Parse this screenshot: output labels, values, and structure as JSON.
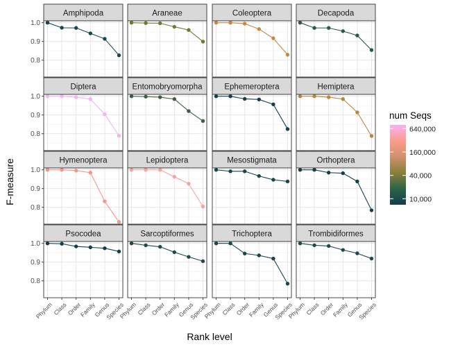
{
  "chart_data": {
    "type": "line",
    "xlabel": "Rank level",
    "ylabel": "F-measure",
    "ylim": [
      0.71,
      1.01
    ],
    "y_ticks": [
      0.8,
      0.9,
      1.0
    ],
    "y_tick_labels": [
      "0.8",
      "0.9",
      "1.0"
    ],
    "grid": true,
    "categories": [
      "Phylum",
      "Class",
      "Order",
      "Family",
      "Genus",
      "Species"
    ],
    "legend": {
      "title": "num Seqs",
      "placement": "right",
      "scale": "log",
      "range": [
        7000,
        800000
      ],
      "breaks": [
        10000,
        40000,
        160000,
        640000
      ],
      "break_labels": [
        "10,000",
        "40,000",
        "160,000",
        "640,000"
      ],
      "colors": [
        "#163d4e",
        "#2c6446",
        "#887f3a",
        "#ce906c",
        "#fa9d8d",
        "#f7b1f1"
      ]
    },
    "panels": [
      {
        "name": "Amphipoda",
        "values": [
          1.0,
          0.973,
          0.972,
          0.943,
          0.914,
          0.826
        ],
        "color": "#1a4550"
      },
      {
        "name": "Araneae",
        "values": [
          1.0,
          0.998,
          0.997,
          0.978,
          0.961,
          0.899
        ],
        "color": "#6f7a2f"
      },
      {
        "name": "Coleoptera",
        "values": [
          1.0,
          1.0,
          0.995,
          0.966,
          0.917,
          0.829
        ],
        "color": "#c58a3e"
      },
      {
        "name": "Decapoda",
        "values": [
          1.0,
          0.972,
          0.972,
          0.955,
          0.932,
          0.854
        ],
        "color": "#2c5a4a"
      },
      {
        "name": "Diptera",
        "values": [
          1.0,
          1.0,
          0.995,
          0.985,
          0.904,
          0.789
        ],
        "color": "#f5b3ef"
      },
      {
        "name": "Entomobryomorpha",
        "values": [
          1.0,
          0.998,
          0.995,
          0.985,
          0.921,
          0.868
        ],
        "color": "#3b5f43"
      },
      {
        "name": "Ephemeroptera",
        "values": [
          1.0,
          1.0,
          0.986,
          0.983,
          0.957,
          0.825
        ],
        "color": "#163d4e"
      },
      {
        "name": "Hemiptera",
        "values": [
          1.0,
          1.0,
          0.995,
          0.985,
          0.914,
          0.788
        ],
        "color": "#b8873a"
      },
      {
        "name": "Hymenoptera",
        "values": [
          1.0,
          1.0,
          0.996,
          0.985,
          0.832,
          0.722
        ],
        "color": "#f5958a"
      },
      {
        "name": "Lepidoptera",
        "values": [
          1.0,
          1.0,
          1.0,
          0.963,
          0.926,
          0.804
        ],
        "color": "#f7a49f"
      },
      {
        "name": "Mesostigmata",
        "values": [
          1.0,
          0.992,
          0.992,
          0.967,
          0.947,
          0.938
        ],
        "color": "#1a4550"
      },
      {
        "name": "Orthoptera",
        "values": [
          1.0,
          1.0,
          0.985,
          0.982,
          0.938,
          0.784
        ],
        "color": "#163d4e"
      },
      {
        "name": "Psocodea",
        "values": [
          1.0,
          0.998,
          0.984,
          0.979,
          0.974,
          0.957
        ],
        "color": "#163d4e"
      },
      {
        "name": "Sarcoptiformes",
        "values": [
          1.0,
          0.99,
          0.982,
          0.953,
          0.928,
          0.905
        ],
        "color": "#1e4a4d"
      },
      {
        "name": "Trichoptera",
        "values": [
          1.0,
          1.0,
          0.946,
          0.936,
          0.919,
          0.785
        ],
        "color": "#1a4550"
      },
      {
        "name": "Trombidiformes",
        "values": [
          1.0,
          0.99,
          0.986,
          0.965,
          0.947,
          0.919
        ],
        "color": "#1e4a4d"
      }
    ]
  }
}
